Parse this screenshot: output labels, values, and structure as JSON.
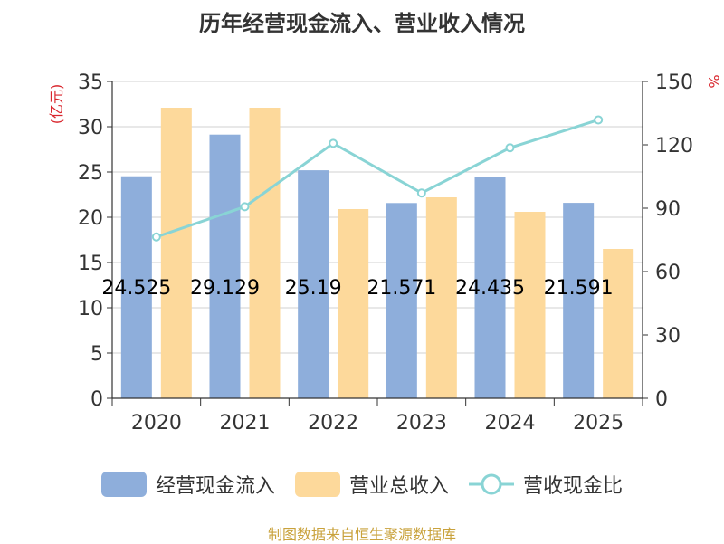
{
  "chart_data": {
    "type": "bar",
    "title": "历年经营现金流入、营业收入情况",
    "categories": [
      "2020",
      "2021",
      "2022",
      "2023",
      "2024",
      "2025"
    ],
    "series": [
      {
        "name": "经营现金流入",
        "values": [
          24.525,
          29.129,
          25.19,
          21.571,
          24.435,
          21.591
        ],
        "axis": "left",
        "color": "#8eaedb"
      },
      {
        "name": "营业总收入",
        "values": [
          32.1,
          32.1,
          20.9,
          22.2,
          20.6,
          16.5
        ],
        "axis": "left",
        "color": "#fdd99b"
      },
      {
        "name": "营收现金比",
        "type": "line",
        "values": [
          76.4,
          90.7,
          120.7,
          97.2,
          118.6,
          131.8
        ],
        "axis": "right",
        "color": "#89d4d5"
      }
    ],
    "data_labels": [
      "24.525",
      "29.129",
      "25.19",
      "21.571",
      "24.435",
      "21.591"
    ],
    "y_left": {
      "label": "(亿元)",
      "ticks": [
        "0",
        "5",
        "10",
        "15",
        "20",
        "25",
        "30",
        "35"
      ],
      "range": [
        0,
        35
      ]
    },
    "y_right": {
      "label": "%",
      "ticks": [
        "0",
        "30",
        "60",
        "90",
        "120",
        "150"
      ],
      "range": [
        0,
        150
      ]
    },
    "grid": true,
    "legend_position": "bottom"
  },
  "source_text": "制图数据来自恒生聚源数据库"
}
